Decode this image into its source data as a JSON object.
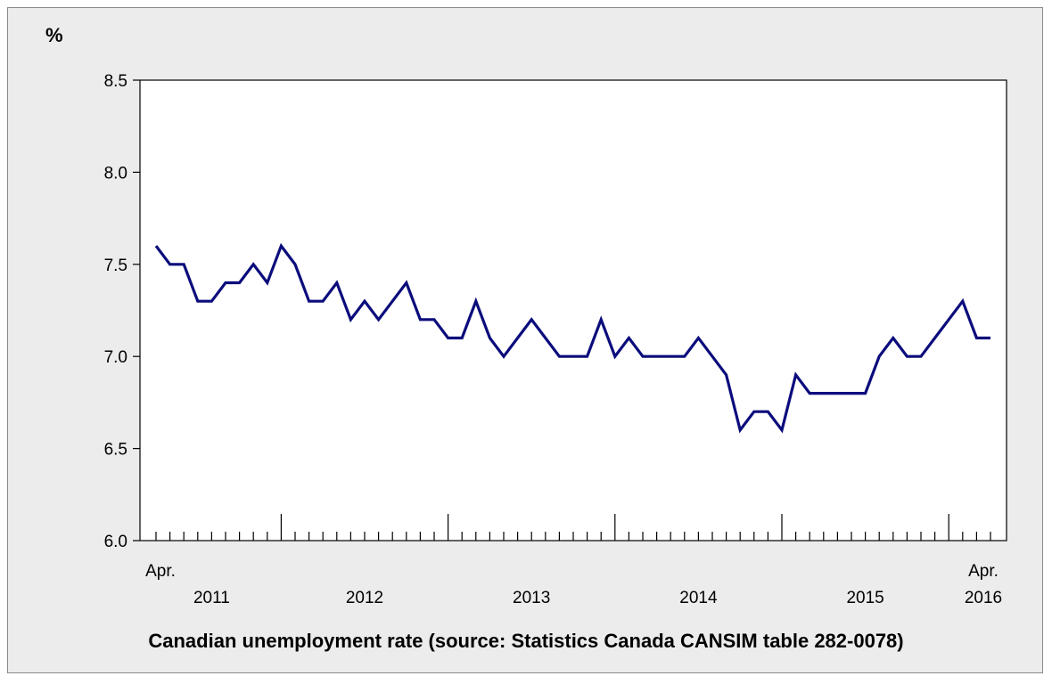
{
  "chart_data": {
    "type": "line",
    "title": "Canadian unemployment rate (source: Statistics Canada CANSIM table 282-0078)",
    "ylabel": "%",
    "xlabel": "",
    "ylim": [
      6.0,
      8.5
    ],
    "yticks": [
      "6.0",
      "6.5",
      "7.0",
      "7.5",
      "8.0",
      "8.5"
    ],
    "x_start_label": "Apr.",
    "x_end_label": "Apr.",
    "x_start": "2011-04",
    "x_end": "2016-04",
    "year_labels": [
      "2011",
      "2012",
      "2013",
      "2014",
      "2015",
      "2016"
    ],
    "grid": false,
    "legend": "none",
    "line_color": "#0b0c7c",
    "series": [
      {
        "values": [
          7.6,
          7.5,
          7.5,
          7.3,
          7.3,
          7.4,
          7.4,
          7.5,
          7.4,
          7.6,
          7.5,
          7.3,
          7.3,
          7.4,
          7.2,
          7.3,
          7.2,
          7.3,
          7.4,
          7.2,
          7.2,
          7.1,
          7.1,
          7.3,
          7.1,
          7.0,
          7.1,
          7.2,
          7.1,
          7.0,
          7.0,
          7.0,
          7.2,
          7.0,
          7.1,
          7.0,
          7.0,
          7.0,
          7.0,
          7.1,
          7.0,
          6.9,
          6.6,
          6.7,
          6.7,
          6.6,
          6.9,
          6.8,
          6.8,
          6.8,
          6.8,
          6.8,
          7.0,
          7.1,
          7.0,
          7.0,
          7.1,
          7.2,
          7.3,
          7.1,
          7.1
        ]
      }
    ]
  }
}
